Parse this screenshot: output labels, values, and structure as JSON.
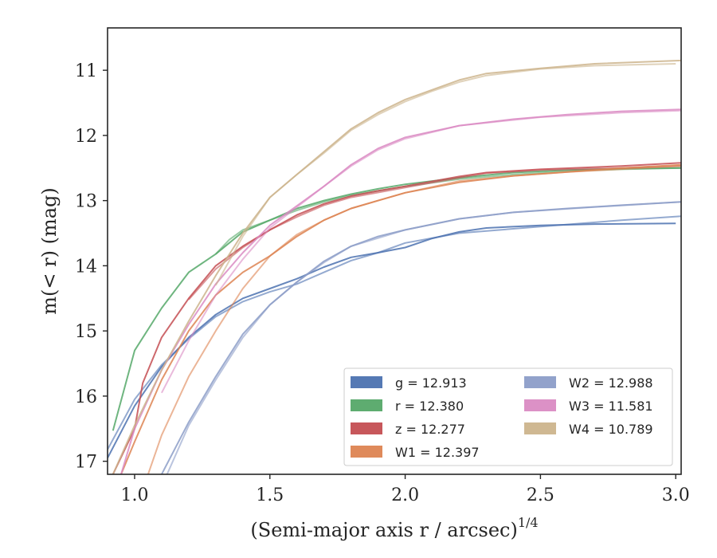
{
  "chart_data": {
    "type": "line",
    "title": "",
    "xlabel": "(Semi-major axis r / arcsec)",
    "xlabel_sup": "1/4",
    "ylabel": "m(< r) (mag)",
    "xlim": [
      0.9,
      3.02
    ],
    "ylim": [
      17.2,
      10.35
    ],
    "y_inverted": true,
    "grid": false,
    "legend_location": "lower-right",
    "legend_columns": 2,
    "x_ticks": [
      {
        "value": 1.0,
        "label": "1.0"
      },
      {
        "value": 1.5,
        "label": "1.5"
      },
      {
        "value": 2.0,
        "label": "2.0"
      },
      {
        "value": 2.5,
        "label": "2.5"
      },
      {
        "value": 3.0,
        "label": "3.0"
      }
    ],
    "y_ticks": [
      {
        "value": 11,
        "label": "11"
      },
      {
        "value": 12,
        "label": "12"
      },
      {
        "value": 13,
        "label": "13"
      },
      {
        "value": 14,
        "label": "14"
      },
      {
        "value": 15,
        "label": "15"
      },
      {
        "value": 16,
        "label": "16"
      },
      {
        "value": 17,
        "label": "17"
      }
    ],
    "series": [
      {
        "name": "g",
        "legend_label": "g = 12.913",
        "color": "#4c72b0",
        "lines": [
          [
            [
              0.9,
              16.95
            ],
            [
              1.0,
              16.15
            ],
            [
              1.1,
              15.55
            ],
            [
              1.2,
              15.1
            ],
            [
              1.3,
              14.75
            ],
            [
              1.4,
              14.5
            ],
            [
              1.5,
              14.35
            ],
            [
              1.6,
              14.2
            ],
            [
              1.7,
              14.02
            ],
            [
              1.8,
              13.87
            ],
            [
              1.9,
              13.8
            ],
            [
              2.0,
              13.72
            ],
            [
              2.1,
              13.58
            ],
            [
              2.2,
              13.48
            ],
            [
              2.3,
              13.42
            ],
            [
              2.5,
              13.38
            ],
            [
              2.7,
              13.36
            ],
            [
              3.0,
              13.35
            ]
          ],
          [
            [
              0.9,
              16.82
            ],
            [
              1.0,
              16.05
            ],
            [
              1.1,
              15.52
            ],
            [
              1.2,
              15.12
            ],
            [
              1.3,
              14.78
            ],
            [
              1.4,
              14.55
            ],
            [
              1.5,
              14.4
            ],
            [
              1.6,
              14.28
            ],
            [
              1.7,
              14.1
            ],
            [
              1.8,
              13.92
            ],
            [
              1.9,
              13.8
            ],
            [
              2.0,
              13.65
            ],
            [
              2.2,
              13.5
            ],
            [
              2.5,
              13.4
            ],
            [
              2.8,
              13.3
            ],
            [
              3.02,
              13.24
            ]
          ]
        ]
      },
      {
        "name": "r",
        "legend_label": "r = 12.380",
        "color": "#55a868",
        "lines": [
          [
            [
              0.92,
              16.53
            ],
            [
              1.0,
              15.3
            ],
            [
              1.1,
              14.65
            ],
            [
              1.2,
              14.1
            ],
            [
              1.3,
              13.82
            ],
            [
              1.4,
              13.48
            ],
            [
              1.5,
              13.3
            ],
            [
              1.6,
              13.12
            ],
            [
              1.7,
              13.0
            ],
            [
              1.8,
              12.9
            ],
            [
              1.9,
              12.82
            ],
            [
              2.0,
              12.75
            ],
            [
              2.2,
              12.65
            ],
            [
              2.4,
              12.57
            ],
            [
              2.6,
              12.53
            ],
            [
              2.8,
              12.51
            ],
            [
              3.02,
              12.5
            ]
          ],
          [
            [
              1.3,
              13.82
            ],
            [
              1.35,
              13.6
            ],
            [
              1.4,
              13.45
            ],
            [
              1.5,
              13.3
            ],
            [
              1.6,
              13.15
            ],
            [
              1.7,
              13.02
            ],
            [
              1.8,
              12.92
            ],
            [
              1.9,
              12.85
            ],
            [
              2.0,
              12.78
            ],
            [
              2.2,
              12.67
            ],
            [
              2.4,
              12.6
            ],
            [
              2.6,
              12.55
            ],
            [
              2.8,
              12.52
            ],
            [
              3.02,
              12.5
            ]
          ]
        ]
      },
      {
        "name": "z",
        "legend_label": "z = 12.277",
        "color": "#c44e52",
        "lines": [
          [
            [
              0.92,
              17.2
            ],
            [
              1.0,
              16.5
            ],
            [
              1.03,
              15.8
            ],
            [
              1.1,
              15.1
            ],
            [
              1.2,
              14.5
            ],
            [
              1.3,
              14.0
            ],
            [
              1.4,
              13.7
            ],
            [
              1.5,
              13.45
            ],
            [
              1.6,
              13.22
            ],
            [
              1.7,
              13.05
            ],
            [
              1.8,
              12.93
            ],
            [
              1.9,
              12.85
            ],
            [
              2.0,
              12.78
            ],
            [
              2.2,
              12.63
            ],
            [
              2.3,
              12.57
            ],
            [
              2.5,
              12.52
            ],
            [
              2.8,
              12.47
            ],
            [
              3.02,
              12.42
            ]
          ],
          [
            [
              1.2,
              14.52
            ],
            [
              1.3,
              14.05
            ],
            [
              1.4,
              13.72
            ],
            [
              1.5,
              13.45
            ],
            [
              1.6,
              13.25
            ],
            [
              1.7,
              13.07
            ],
            [
              1.8,
              12.95
            ],
            [
              2.0,
              12.8
            ],
            [
              2.2,
              12.65
            ],
            [
              2.3,
              12.58
            ],
            [
              2.5,
              12.53
            ],
            [
              2.8,
              12.5
            ],
            [
              3.02,
              12.47
            ]
          ]
        ]
      },
      {
        "name": "W1",
        "legend_label": "W1 = 12.397",
        "color": "#dd8452",
        "lines": [
          [
            [
              0.95,
              17.2
            ],
            [
              1.0,
              16.7
            ],
            [
              1.1,
              15.75
            ],
            [
              1.2,
              15.0
            ],
            [
              1.3,
              14.45
            ],
            [
              1.4,
              14.1
            ],
            [
              1.5,
              13.85
            ],
            [
              1.6,
              13.55
            ],
            [
              1.7,
              13.3
            ],
            [
              1.8,
              13.12
            ],
            [
              1.9,
              13.0
            ],
            [
              2.0,
              12.88
            ],
            [
              2.2,
              12.72
            ],
            [
              2.4,
              12.62
            ],
            [
              2.6,
              12.56
            ],
            [
              2.8,
              12.5
            ],
            [
              3.02,
              12.45
            ]
          ],
          [
            [
              1.05,
              17.2
            ],
            [
              1.1,
              16.6
            ],
            [
              1.2,
              15.7
            ],
            [
              1.3,
              15.0
            ],
            [
              1.4,
              14.35
            ],
            [
              1.5,
              13.85
            ],
            [
              1.6,
              13.52
            ],
            [
              1.7,
              13.3
            ],
            [
              1.8,
              13.12
            ],
            [
              2.0,
              12.88
            ],
            [
              2.2,
              12.7
            ],
            [
              2.4,
              12.62
            ],
            [
              2.6,
              12.56
            ],
            [
              3.02,
              12.47
            ]
          ]
        ]
      },
      {
        "name": "W2",
        "legend_label": "W2 = 12.988",
        "color": "#8c9dc8",
        "lines": [
          [
            [
              1.1,
              17.2
            ],
            [
              1.2,
              16.4
            ],
            [
              1.3,
              15.7
            ],
            [
              1.4,
              15.05
            ],
            [
              1.5,
              14.6
            ],
            [
              1.6,
              14.25
            ],
            [
              1.7,
              13.93
            ],
            [
              1.8,
              13.7
            ],
            [
              1.9,
              13.55
            ],
            [
              2.0,
              13.45
            ],
            [
              2.2,
              13.28
            ],
            [
              2.4,
              13.18
            ],
            [
              2.6,
              13.12
            ],
            [
              2.8,
              13.07
            ],
            [
              3.02,
              13.02
            ]
          ],
          [
            [
              1.12,
              17.2
            ],
            [
              1.2,
              16.45
            ],
            [
              1.3,
              15.75
            ],
            [
              1.4,
              15.1
            ],
            [
              1.5,
              14.6
            ],
            [
              1.6,
              14.25
            ],
            [
              1.7,
              13.95
            ],
            [
              1.8,
              13.7
            ],
            [
              2.0,
              13.45
            ],
            [
              2.2,
              13.28
            ],
            [
              2.4,
              13.18
            ],
            [
              2.7,
              13.1
            ],
            [
              3.02,
              13.02
            ]
          ]
        ]
      },
      {
        "name": "W3",
        "legend_label": "W3 = 11.581",
        "color": "#da8bc3",
        "lines": [
          [
            [
              0.95,
              17.2
            ],
            [
              1.0,
              16.5
            ],
            [
              1.1,
              15.6
            ],
            [
              1.2,
              14.9
            ],
            [
              1.3,
              14.28
            ],
            [
              1.4,
              13.8
            ],
            [
              1.5,
              13.38
            ],
            [
              1.6,
              13.08
            ],
            [
              1.7,
              12.78
            ],
            [
              1.8,
              12.45
            ],
            [
              1.9,
              12.2
            ],
            [
              2.0,
              12.03
            ],
            [
              2.2,
              11.85
            ],
            [
              2.4,
              11.75
            ],
            [
              2.6,
              11.68
            ],
            [
              2.8,
              11.63
            ],
            [
              3.02,
              11.6
            ]
          ],
          [
            [
              1.1,
              15.95
            ],
            [
              1.2,
              15.15
            ],
            [
              1.3,
              14.45
            ],
            [
              1.4,
              13.9
            ],
            [
              1.5,
              13.42
            ],
            [
              1.6,
              13.1
            ],
            [
              1.7,
              12.78
            ],
            [
              1.8,
              12.47
            ],
            [
              1.9,
              12.22
            ],
            [
              2.0,
              12.05
            ],
            [
              2.2,
              11.85
            ],
            [
              2.5,
              11.72
            ],
            [
              2.8,
              11.65
            ],
            [
              3.02,
              11.62
            ]
          ]
        ]
      },
      {
        "name": "W4",
        "legend_label": "W4 = 10.789",
        "color": "#ccb48c",
        "lines": [
          [
            [
              0.92,
              17.2
            ],
            [
              1.0,
              16.45
            ],
            [
              1.1,
              15.6
            ],
            [
              1.2,
              14.85
            ],
            [
              1.3,
              14.15
            ],
            [
              1.4,
              13.5
            ],
            [
              1.5,
              12.95
            ],
            [
              1.6,
              12.6
            ],
            [
              1.7,
              12.25
            ],
            [
              1.8,
              11.9
            ],
            [
              1.9,
              11.65
            ],
            [
              2.0,
              11.45
            ],
            [
              2.1,
              11.3
            ],
            [
              2.2,
              11.15
            ],
            [
              2.3,
              11.05
            ],
            [
              2.5,
              10.97
            ],
            [
              2.7,
              10.9
            ],
            [
              3.02,
              10.85
            ]
          ],
          [
            [
              1.3,
              14.3
            ],
            [
              1.4,
              13.55
            ],
            [
              1.5,
              12.95
            ],
            [
              1.6,
              12.6
            ],
            [
              1.7,
              12.27
            ],
            [
              1.8,
              11.92
            ],
            [
              1.9,
              11.68
            ],
            [
              2.0,
              11.48
            ],
            [
              2.1,
              11.32
            ],
            [
              2.2,
              11.18
            ],
            [
              2.3,
              11.08
            ],
            [
              2.5,
              10.98
            ],
            [
              2.7,
              10.93
            ],
            [
              3.0,
              10.9
            ]
          ]
        ]
      }
    ]
  }
}
